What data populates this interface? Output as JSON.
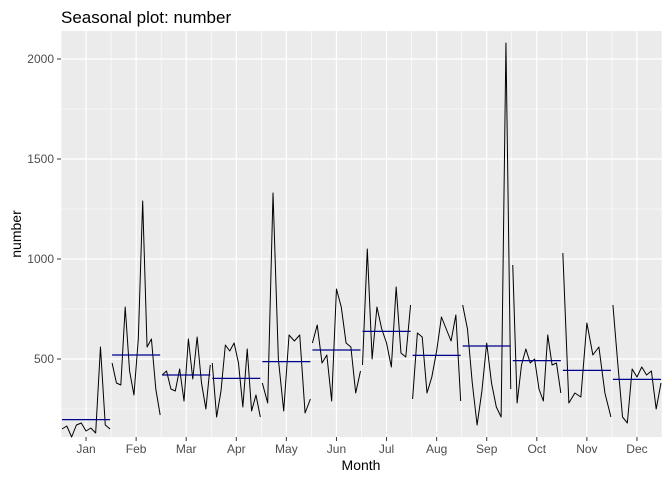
{
  "chart_data": {
    "type": "line",
    "title": "Seasonal plot: number",
    "xlabel": "Month",
    "ylabel": "number",
    "categories": [
      "Jan",
      "Feb",
      "Mar",
      "Apr",
      "May",
      "Jun",
      "Jul",
      "Aug",
      "Sep",
      "Oct",
      "Nov",
      "Dec"
    ],
    "y_ticks": [
      500,
      1000,
      1500,
      2000
    ],
    "ylim": [
      110,
      2140
    ],
    "grid": true,
    "legend": "none",
    "colors": {
      "series": "#000000",
      "mean": "#00008b",
      "panel": "#ebebeb",
      "grid": "#ffffff"
    },
    "month_means": [
      197,
      520,
      420,
      403,
      487,
      545,
      638,
      518,
      565,
      492,
      443,
      398
    ],
    "series": [
      {
        "values": [
          [
            150,
            165,
            110,
            170,
            180,
            140,
            155,
            130,
            560,
            170,
            150
          ]
        ]
      },
      {
        "values": [
          [
            480,
            380,
            370,
            760,
            440,
            320,
            600,
            1290,
            560,
            600,
            350,
            220
          ]
        ]
      },
      {
        "values": [
          [
            420,
            440,
            350,
            340,
            450,
            290,
            600,
            400,
            610,
            380,
            250,
            470
          ]
        ]
      },
      {
        "values": [
          [
            480,
            210,
            340,
            570,
            540,
            580,
            480,
            260,
            550,
            240,
            320,
            210
          ]
        ]
      },
      {
        "values": [
          [
            380,
            280,
            1330,
            500,
            240,
            620,
            590,
            620,
            230,
            300
          ]
        ]
      },
      {
        "values": [
          [
            580,
            670,
            480,
            520,
            290,
            850,
            760,
            580,
            560,
            330,
            440
          ]
        ]
      },
      {
        "values": [
          [
            470,
            1050,
            500,
            760,
            650,
            580,
            460,
            860,
            530,
            510,
            770
          ]
        ]
      },
      {
        "values": [
          [
            300,
            630,
            610,
            330,
            410,
            540,
            710,
            650,
            590,
            720,
            290
          ]
        ]
      },
      {
        "values": [
          [
            770,
            650,
            380,
            170,
            340,
            580,
            380,
            260,
            210,
            2080,
            350
          ]
        ]
      },
      {
        "values": [
          [
            970,
            280,
            470,
            550,
            480,
            500,
            350,
            290,
            620,
            470,
            480,
            330
          ]
        ]
      },
      {
        "values": [
          [
            1030,
            280,
            330,
            310,
            680,
            520,
            560,
            330,
            210
          ]
        ]
      },
      {
        "values": [
          [
            770,
            480,
            210,
            180,
            450,
            410,
            460,
            420,
            440,
            250,
            380
          ]
        ]
      }
    ]
  }
}
